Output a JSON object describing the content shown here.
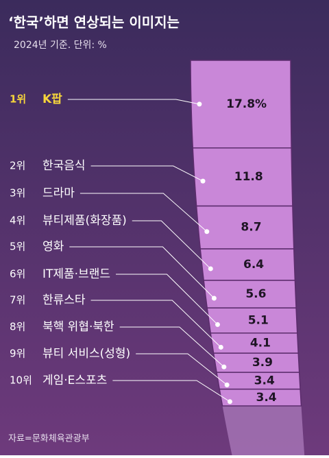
{
  "chart_data": {
    "type": "curved-stack",
    "title": "‘한국’하면 연상되는 이미지는",
    "subtitle": "2024년 기준. 단위: %",
    "ranks": [
      "1위",
      "2위",
      "3위",
      "4위",
      "5위",
      "6위",
      "7위",
      "8위",
      "9위",
      "10위"
    ],
    "categories": [
      "K팝",
      "한국음식",
      "드라마",
      "뷰티제품(화장품)",
      "영화",
      "IT제품·브랜드",
      "한류스타",
      "북핵 위협·북한",
      "뷰티 서비스(성형)",
      "게임·E스포츠"
    ],
    "values": [
      17.8,
      11.8,
      8.7,
      6.4,
      5.6,
      5.1,
      4.1,
      3.9,
      3.4,
      3.4
    ],
    "value_labels": [
      "17.8%",
      "11.8",
      "8.7",
      "6.4",
      "5.6",
      "5.1",
      "4.1",
      "3.9",
      "3.4",
      "3.4"
    ],
    "color": "#c987d8",
    "highlight_color": "#f6d53b",
    "source": "자료=문화체육관광부"
  }
}
